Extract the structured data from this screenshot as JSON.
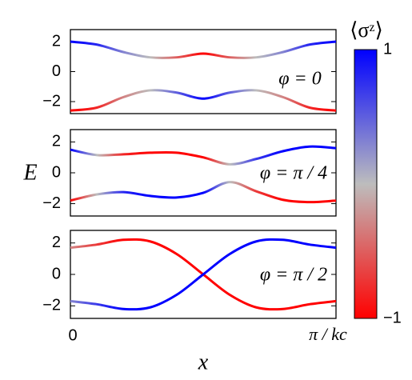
{
  "chart_data": [
    {
      "type": "line",
      "annotation": "φ = 0",
      "x": [
        0,
        0.1,
        0.2,
        0.3,
        0.4,
        0.5,
        0.6,
        0.7,
        0.8,
        0.9,
        1
      ],
      "xlim": [
        0,
        1
      ],
      "ylim": [
        -2.8,
        2.8
      ],
      "yticks": [
        {
          "value": -2,
          "label": "−2"
        },
        0,
        2
      ],
      "series": [
        {
          "values": [
            2.0,
            1.8,
            1.3,
            0.95,
            0.95,
            1.2,
            0.95,
            0.95,
            1.3,
            1.8,
            2.0
          ],
          "z": [
            1,
            0.8,
            0.3,
            0,
            -0.5,
            -1,
            -0.5,
            0,
            0.3,
            0.8,
            1
          ]
        },
        {
          "values": [
            -2.6,
            -2.4,
            -1.7,
            -1.25,
            -1.4,
            -1.8,
            -1.4,
            -1.25,
            -1.7,
            -2.4,
            -2.6
          ],
          "z": [
            -1,
            -0.8,
            -0.3,
            0,
            0.5,
            1,
            0.5,
            0,
            -0.3,
            -0.8,
            -1
          ]
        }
      ]
    },
    {
      "type": "line",
      "annotation": "φ = π / 4",
      "y_label": "E",
      "x": [
        0,
        0.1,
        0.2,
        0.3,
        0.4,
        0.5,
        0.6,
        0.7,
        0.8,
        0.9,
        1
      ],
      "xlim": [
        0,
        1
      ],
      "ylim": [
        -2.8,
        2.8
      ],
      "yticks": [
        {
          "value": -2,
          "label": "−2"
        },
        0,
        2
      ],
      "series": [
        {
          "values": [
            1.5,
            1.15,
            1.2,
            1.3,
            1.3,
            1.0,
            0.55,
            0.9,
            1.4,
            1.7,
            1.6
          ],
          "z": [
            1,
            0,
            -0.8,
            -1,
            -1,
            -1,
            0,
            0.7,
            1,
            1,
            1
          ]
        },
        {
          "values": [
            -1.8,
            -1.4,
            -1.25,
            -1.5,
            -1.6,
            -1.3,
            -0.6,
            -1.2,
            -1.75,
            -1.9,
            -1.8
          ],
          "z": [
            -1,
            0,
            0.8,
            1,
            1,
            1,
            0,
            -0.7,
            -1,
            -1,
            -1
          ]
        }
      ]
    },
    {
      "type": "line",
      "annotation": "φ = π / 2",
      "x_label": "x",
      "x": [
        0,
        0.1,
        0.2,
        0.3,
        0.4,
        0.5,
        0.6,
        0.7,
        0.8,
        0.9,
        1
      ],
      "xlim": [
        0,
        1
      ],
      "xticks": [
        0,
        {
          "value": 1,
          "label": "π / kc"
        }
      ],
      "ylim": [
        -2.8,
        2.8
      ],
      "yticks": [
        {
          "value": -2,
          "label": "−2"
        },
        0,
        2
      ],
      "series": [
        {
          "values": [
            1.7,
            1.9,
            2.2,
            2.1,
            1.3,
            0,
            -1.3,
            -2.1,
            -2.2,
            -1.9,
            -1.7
          ],
          "z": [
            -0.3,
            -0.7,
            -1,
            -1,
            -1,
            -1,
            -1,
            -1,
            -1,
            -1,
            -1
          ]
        },
        {
          "values": [
            -1.7,
            -1.9,
            -2.2,
            -2.1,
            -1.3,
            0,
            1.3,
            2.1,
            2.2,
            1.9,
            1.7
          ],
          "z": [
            0.3,
            0.7,
            1,
            1,
            1,
            1,
            1,
            1,
            1,
            1,
            1
          ]
        }
      ]
    }
  ],
  "colorbar": {
    "title": "⟨σᶻ⟩",
    "lim": [
      -1,
      1
    ],
    "ticks": [
      1,
      {
        "value": -1,
        "label": "−1"
      }
    ],
    "colors": [
      "#ff0000",
      "#bdbdbd",
      "#0000ff"
    ]
  }
}
